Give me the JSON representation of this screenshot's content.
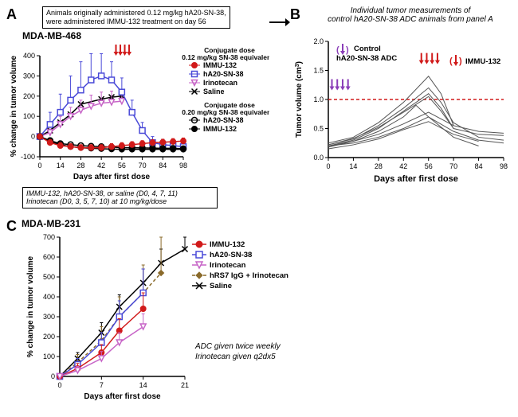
{
  "panelA": {
    "letter": "A",
    "model": "MDA-MB-468",
    "top_note_l1": "Animals originally administered 0.12 mg/kg hA20-SN-38,",
    "top_note_l2": "were administered IMMU-132 treatment on day 56",
    "bottom_note_l1": "IMMU-132, hA20-SN-38, or saline (D0, 4, 7, 11)",
    "bottom_note_l2": "Irinotecan (D0, 3, 5, 7, 10) at 10 mg/kg/dose",
    "xaxis": "Days after first dose",
    "yaxis": "% change in tumor volume",
    "xlim": [
      0,
      98
    ],
    "xticks": [
      0,
      14,
      28,
      42,
      56,
      70,
      84,
      98
    ],
    "ylim": [
      -100,
      400
    ],
    "yticks": [
      -100,
      0,
      100,
      200,
      300,
      400
    ],
    "arrows_x": [
      52,
      55,
      58,
      61
    ],
    "arrow_color": "#d11a1a",
    "legend_dose1_title": "Conjugate dose",
    "legend_dose1_sub": "0.12 mg/kg SN-38 equivalents",
    "legend_dose1": [
      {
        "label": "IMMU-132",
        "color": "#d11a1a",
        "marker": "circle",
        "line": "#d11a1a"
      },
      {
        "label": "hA20-SN-38",
        "color": "#4a4ad8",
        "marker": "open-square",
        "line": "#4a4ad8"
      },
      {
        "label": "Irinotecan",
        "color": "#c765c7",
        "marker": "open-tri-down",
        "line": "#c765c7"
      },
      {
        "label": "Saline",
        "color": "#000000",
        "marker": "x",
        "line": "#000000"
      }
    ],
    "legend_dose2_title": "Conjugate dose",
    "legend_dose2_sub": "0.20 mg/kg SN-38 equivalents",
    "legend_dose2": [
      {
        "label": "hA20-SN-38",
        "color": "#000000",
        "marker": "open-circle",
        "line": "#000000"
      },
      {
        "label": "IMMU-132",
        "color": "#000000",
        "marker": "circle",
        "line": "#000000"
      }
    ],
    "series": {
      "bg": "#ffffff",
      "hA20_012": {
        "color": "#4a4ad8",
        "x": [
          0,
          7,
          14,
          21,
          28,
          35,
          42,
          49,
          56,
          63,
          70,
          77,
          84,
          91,
          98
        ],
        "y": [
          0,
          60,
          120,
          180,
          230,
          280,
          300,
          280,
          220,
          120,
          30,
          -30,
          -40,
          -45,
          -50
        ],
        "err": [
          0,
          60,
          90,
          120,
          140,
          130,
          110,
          90,
          70,
          60,
          40,
          30,
          25,
          20,
          20
        ]
      },
      "Irinotecan_012": {
        "color": "#c765c7",
        "x": [
          0,
          7,
          14,
          21,
          28,
          35,
          42,
          49,
          56
        ],
        "y": [
          0,
          20,
          60,
          100,
          130,
          150,
          165,
          170,
          175
        ],
        "err": [
          0,
          30,
          40,
          45,
          50,
          55,
          55,
          55,
          55
        ]
      },
      "Saline_line": {
        "color": "#000000",
        "x": [
          0,
          7,
          14,
          21,
          28,
          42,
          49,
          56
        ],
        "y": [
          0,
          30,
          70,
          110,
          160,
          185,
          195,
          200
        ]
      },
      "IMMU132_012": {
        "color": "#d11a1a",
        "x": [
          0,
          7,
          14,
          21,
          28,
          35,
          42,
          49,
          56,
          63,
          70,
          77,
          84,
          91,
          98
        ],
        "y": [
          0,
          -30,
          -45,
          -50,
          -55,
          -55,
          -55,
          -50,
          -45,
          -40,
          -35,
          -30,
          -28,
          -25,
          -22
        ],
        "err": [
          0,
          15,
          15,
          15,
          15,
          15,
          15,
          15,
          15,
          15,
          15,
          15,
          15,
          15,
          15
        ]
      },
      "hA20_020": {
        "color": "#000000",
        "marker": "open-circle",
        "x": [
          0,
          7,
          14,
          21,
          28,
          35,
          42,
          49,
          56,
          63,
          70,
          77,
          84,
          91,
          98
        ],
        "y": [
          0,
          -20,
          -35,
          -40,
          -45,
          -48,
          -50,
          -52,
          -55,
          -55,
          -56,
          -57,
          -58,
          -58,
          -60
        ]
      },
      "IMMU132_020": {
        "color": "#000000",
        "marker": "circle",
        "x": [
          0,
          7,
          14,
          21,
          28,
          35,
          42,
          49,
          56,
          63,
          70,
          77,
          84,
          91,
          98
        ],
        "y": [
          0,
          -25,
          -40,
          -50,
          -55,
          -58,
          -60,
          -62,
          -63,
          -63,
          -63,
          -63,
          -63,
          -63,
          -63
        ]
      }
    }
  },
  "panelB": {
    "letter": "B",
    "title_l1": "Individual tumor measurements of",
    "title_l2": "control hA20-SN-38 ADC animals from panel A",
    "xaxis": "Days after first dose",
    "yaxis": "Tumor volume (cm",
    "yaxis_sup": "3",
    "yaxis_close": ")",
    "xlim": [
      0,
      98
    ],
    "xticks": [
      0,
      14,
      28,
      42,
      56,
      70,
      84,
      98
    ],
    "ylim": [
      0,
      2.0
    ],
    "yticks": [
      0,
      0.5,
      1.0,
      1.5,
      2.0
    ],
    "threshold": 1.0,
    "threshold_color": "#d11a1a",
    "leg_ctrl_label": "Control",
    "leg_ctrl_sub": "hA20-SN-38 ADC",
    "leg_ctrl_color": "#8a3db8",
    "leg_immu_label": "IMMU-132",
    "leg_immu_color": "#d11a1a",
    "arrows_ctrl_x": [
      2,
      5,
      8,
      11
    ],
    "arrows_immu_x": [
      52,
      55,
      58,
      61
    ],
    "lines_color": "#555555",
    "lines": [
      {
        "x": [
          0,
          14,
          28,
          42,
          56,
          63,
          70,
          84,
          98
        ],
        "y": [
          0.25,
          0.35,
          0.6,
          0.95,
          1.4,
          1.1,
          0.55,
          0.45,
          0.42
        ]
      },
      {
        "x": [
          0,
          14,
          28,
          42,
          56,
          63,
          70,
          84,
          98
        ],
        "y": [
          0.2,
          0.3,
          0.5,
          0.8,
          1.1,
          0.85,
          0.5,
          0.4,
          0.38
        ]
      },
      {
        "x": [
          0,
          14,
          28,
          42,
          56,
          63,
          70,
          84,
          98
        ],
        "y": [
          0.22,
          0.32,
          0.55,
          0.85,
          1.2,
          0.95,
          0.6,
          0.35,
          0.3
        ]
      },
      {
        "x": [
          0,
          14,
          28,
          42,
          49,
          56,
          70,
          84
        ],
        "y": [
          0.18,
          0.28,
          0.45,
          0.7,
          0.9,
          0.7,
          0.35,
          0.2
        ]
      },
      {
        "x": [
          0,
          14,
          28,
          42,
          56,
          70,
          84,
          98
        ],
        "y": [
          0.2,
          0.25,
          0.35,
          0.5,
          0.7,
          0.45,
          0.3,
          0.25
        ]
      },
      {
        "x": [
          0,
          14,
          28,
          42,
          56,
          70,
          84
        ],
        "y": [
          0.15,
          0.22,
          0.32,
          0.48,
          0.62,
          0.4,
          0.28
        ]
      },
      {
        "x": [
          0,
          14,
          28,
          42,
          56,
          70
        ],
        "y": [
          0.2,
          0.28,
          0.4,
          0.58,
          0.78,
          0.55
        ]
      },
      {
        "x": [
          0,
          14,
          28,
          42,
          56,
          63,
          70
        ],
        "y": [
          0.22,
          0.33,
          0.52,
          0.78,
          1.05,
          0.8,
          0.5
        ]
      }
    ]
  },
  "panelC": {
    "letter": "C",
    "model": "MDA-MB-231",
    "xaxis": "Days after first dose",
    "yaxis": "% change in tumor volume",
    "xlim": [
      0,
      21
    ],
    "xticks": [
      0,
      7,
      14,
      21
    ],
    "ylim": [
      0,
      700
    ],
    "yticks": [
      0,
      100,
      200,
      300,
      400,
      500,
      600,
      700
    ],
    "note_l1": "ADC given twice weekly",
    "note_l2": "Irinotecan given q2dx5",
    "legend": [
      {
        "label": "IMMU-132",
        "color": "#d11a1a",
        "marker": "circle",
        "fill": "#d11a1a",
        "line": "#d11a1a"
      },
      {
        "label": "hA20-SN-38",
        "color": "#4a4ad8",
        "marker": "open-square",
        "fill": "none",
        "line": "#4a4ad8"
      },
      {
        "label": "Irinotecan",
        "color": "#c765c7",
        "marker": "open-tri-down",
        "fill": "none",
        "line": "#c765c7"
      },
      {
        "label": "hRS7 IgG + Irinotecan",
        "color": "#8a6a2a",
        "marker": "diamond",
        "fill": "#8a6a2a",
        "line": "#8a6a2a",
        "dash": "4 3"
      },
      {
        "label": "Saline",
        "color": "#000000",
        "marker": "x",
        "fill": "none",
        "line": "#000000"
      }
    ],
    "series": {
      "Saline": {
        "color": "#000000",
        "x": [
          0,
          3,
          7,
          10,
          14,
          17,
          21
        ],
        "y": [
          0,
          90,
          220,
          350,
          470,
          570,
          640
        ],
        "err": [
          0,
          30,
          50,
          60,
          70,
          70,
          60
        ]
      },
      "hRS7": {
        "color": "#8a6a2a",
        "dash": "4 3",
        "marker": "diamond",
        "x": [
          0,
          3,
          7,
          10,
          14,
          17
        ],
        "y": [
          0,
          70,
          180,
          300,
          420,
          520
        ],
        "err": [
          0,
          40,
          70,
          100,
          140,
          180
        ]
      },
      "hA20": {
        "color": "#4a4ad8",
        "marker": "open-square",
        "x": [
          0,
          3,
          7,
          10,
          14
        ],
        "y": [
          0,
          60,
          170,
          300,
          420
        ],
        "err": [
          0,
          30,
          50,
          80,
          120
        ]
      },
      "IMMU132": {
        "color": "#d11a1a",
        "marker": "circle",
        "x": [
          0,
          3,
          7,
          10,
          14
        ],
        "y": [
          0,
          40,
          120,
          230,
          340
        ],
        "err": [
          0,
          25,
          40,
          60,
          80
        ]
      },
      "Irinotecan": {
        "color": "#c765c7",
        "marker": "open-tri-down",
        "x": [
          0,
          3,
          7,
          10,
          14
        ],
        "y": [
          0,
          30,
          90,
          170,
          250
        ],
        "err": [
          0,
          20,
          35,
          50,
          65
        ]
      }
    }
  }
}
